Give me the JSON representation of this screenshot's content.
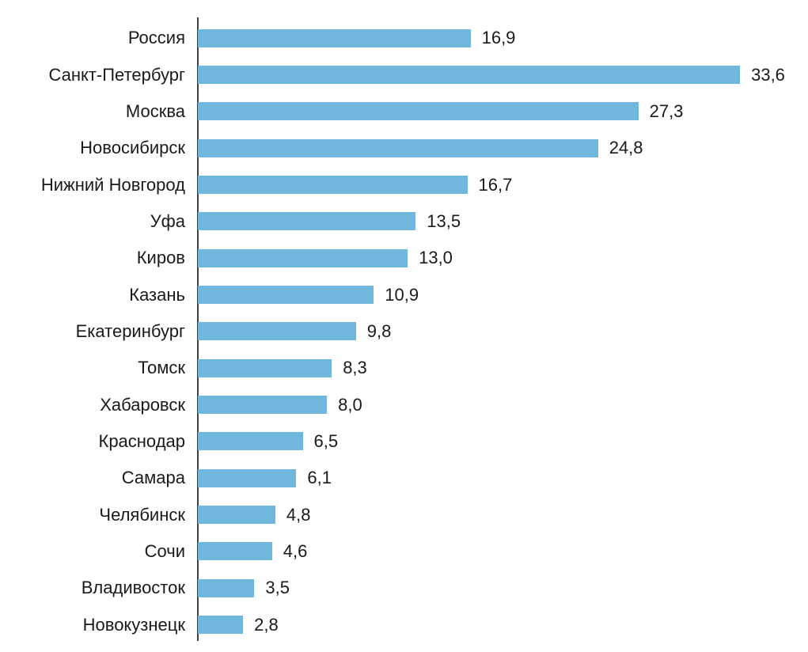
{
  "chart_data": {
    "type": "bar",
    "orientation": "horizontal",
    "title": "",
    "xlabel": "",
    "ylabel": "",
    "categories": [
      "Россия",
      "Санкт-Петербург",
      "Москва",
      "Новосибирск",
      "Нижний Новгород",
      "Уфа",
      "Киров",
      "Казань",
      "Екатеринбург",
      "Томск",
      "Хабаровск",
      "Краснодар",
      "Самара",
      "Челябинск",
      "Сочи",
      "Владивосток",
      "Новокузнецк"
    ],
    "values": [
      16.9,
      33.6,
      27.3,
      24.8,
      16.7,
      13.5,
      13.0,
      10.9,
      9.8,
      8.3,
      8.0,
      6.5,
      6.1,
      4.8,
      4.6,
      3.5,
      2.8
    ],
    "value_labels": [
      "16,9",
      "33,6",
      "27,3",
      "24,8",
      "16,7",
      "13,5",
      "13,0",
      "10,9",
      "9,8",
      "8,3",
      "8,0",
      "6,5",
      "6,1",
      "4,8",
      "4,6",
      "3,5",
      "2,8"
    ],
    "xlim": [
      0,
      33.6
    ],
    "grid": false,
    "legend": false,
    "tick_labels_shown": false,
    "value_labels_shown": true,
    "colors": {
      "bar": "#6FB7DC",
      "axis": "#404040",
      "text": "#1A1A1A",
      "background": "#FFFFFF"
    }
  }
}
